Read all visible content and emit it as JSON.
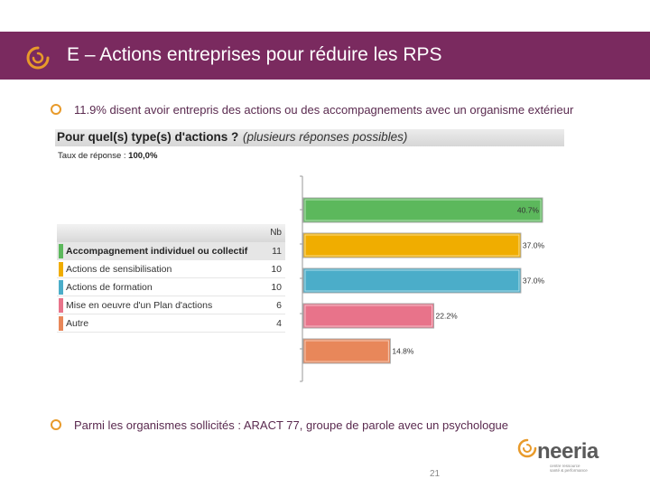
{
  "title": "E – Actions entreprises pour réduire les RPS",
  "bullets": [
    "11.9% disent avoir entrepris des actions ou des accompagnements avec un organisme extérieur",
    "Parmi les organismes sollicités : ARACT 77, groupe de parole avec un psychologue"
  ],
  "survey": {
    "question": "Pour quel(s) type(s) d'actions ?",
    "question_note": "(plusieurs réponses possibles)",
    "rate_label": "Taux de réponse :",
    "rate_value": "100,0%",
    "count_header": "Nb"
  },
  "chart_data": {
    "type": "bar",
    "orientation": "horizontal",
    "categories": [
      "Accompagnement individuel ou collectif",
      "Actions de sensibilisation",
      "Actions de formation",
      "Mise en oeuvre d'un Plan d'actions",
      "Autre"
    ],
    "counts": [
      11,
      10,
      10,
      6,
      4
    ],
    "values": [
      40.7,
      37.0,
      37.0,
      22.2,
      14.8
    ],
    "value_labels": [
      "40.7%",
      "37.0%",
      "37.0%",
      "22.2%",
      "14.8%"
    ],
    "colors": [
      "#5cb85c",
      "#f0ad00",
      "#4badc9",
      "#e8738a",
      "#e8875a"
    ],
    "xlim": [
      0,
      40.7
    ],
    "grid": false
  },
  "page_number": "21",
  "brand": {
    "name": "neeria",
    "tagline_1": "centre ressource",
    "tagline_2": "santé & performance"
  }
}
